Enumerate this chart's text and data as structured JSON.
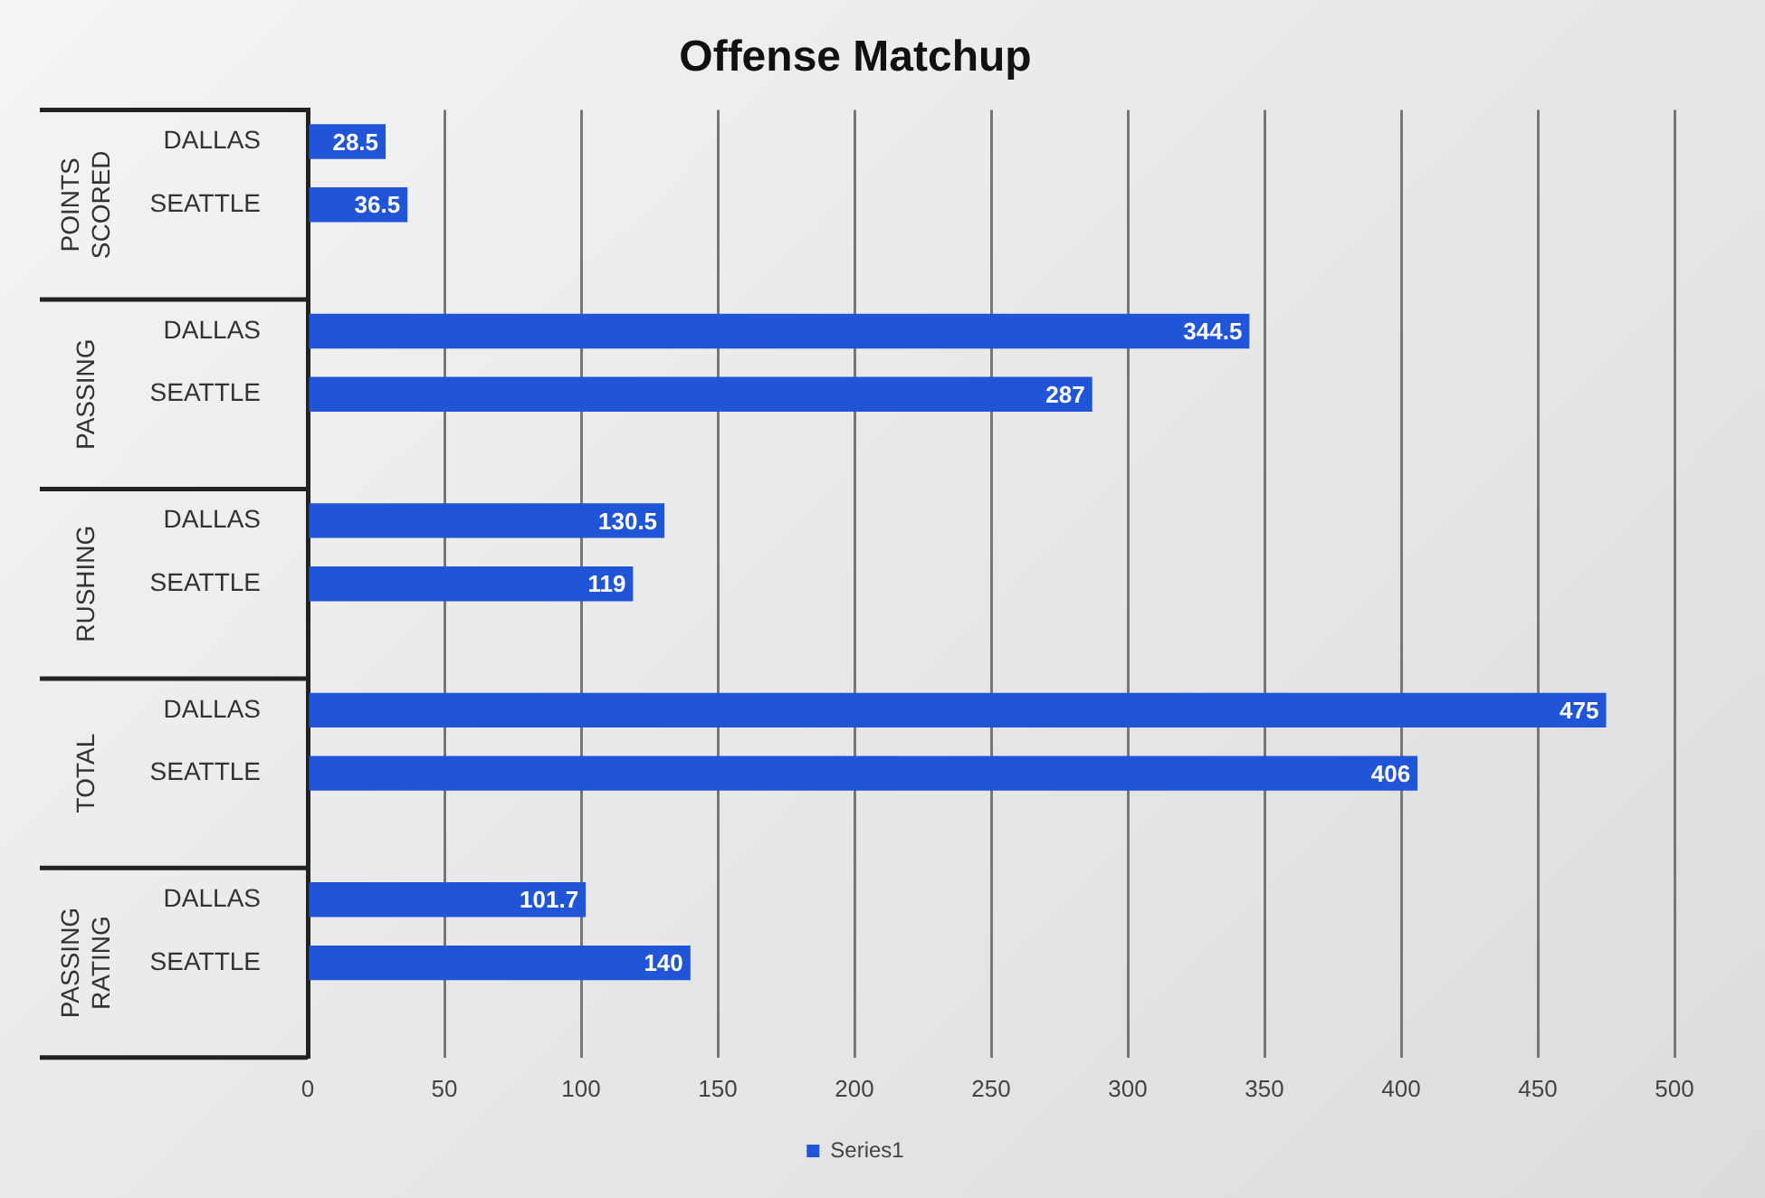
{
  "chart_data": {
    "type": "bar",
    "title": "Offense Matchup",
    "orientation": "horizontal",
    "categories": [
      "DALLAS",
      "SEATTLE",
      null,
      "DALLAS",
      "SEATTLE",
      null,
      "DALLAS",
      "SEATTLE",
      null,
      "DALLAS",
      "SEATTLE",
      null,
      "DALLAS",
      "SEATTLE",
      null
    ],
    "series": [
      {
        "name": "Series1",
        "color": "#1f55d6",
        "values": [
          28.5,
          36.5,
          null,
          344.5,
          287,
          null,
          130.5,
          119,
          null,
          475,
          406,
          null,
          101.7,
          140,
          null
        ]
      }
    ],
    "annotations": [
      "POINTS SCORED",
      "PASSING",
      "RUSHING",
      "TOTAL",
      "PASSING RATING"
    ],
    "xlim": [
      0,
      500
    ],
    "xticks": [
      0,
      50,
      100,
      150,
      200,
      250,
      300,
      350,
      400,
      450,
      500
    ],
    "grid": "x",
    "legend": "bottom",
    "data_labels": true
  }
}
